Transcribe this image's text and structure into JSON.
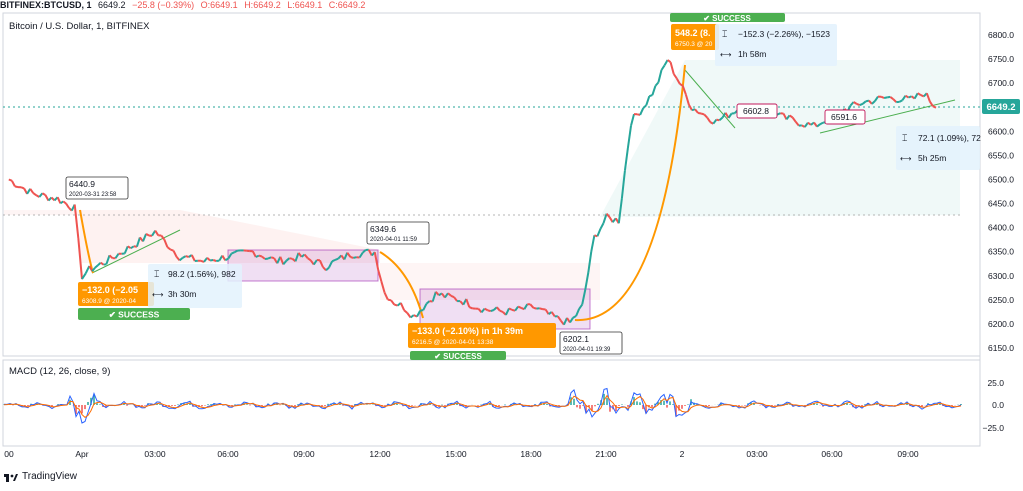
{
  "topbar": {
    "symbol": "BITFINEX:BTCUSD, 1",
    "last": "6649.2",
    "change": "−25.8 (−0.39%)",
    "o": "O:6649.1",
    "h": "H:6649.2",
    "l": "L:6649.1",
    "c": "C:6649.2"
  },
  "chart_title": "Bitcoin / U.S. Dollar, 1, BITFINEX",
  "price_badge": "6649.2",
  "macd_title": "MACD (12, 26, close, 9)",
  "brand": "TradingView",
  "colors": {
    "up": "#26a69a",
    "down": "#ef5350",
    "accent_orange": "#ff9800",
    "success_green": "#4caf50",
    "zone_purple": "#9c27b0"
  },
  "chart_data": {
    "type": "line",
    "x_ticks": [
      "00",
      "Apr",
      "03:00",
      "06:00",
      "09:00",
      "12:00",
      "15:00",
      "18:00",
      "21:00",
      "2",
      "03:00",
      "06:00",
      "09:00"
    ],
    "price_axis": [
      6800.0,
      6750.0,
      6700.0,
      6650.0,
      6600.0,
      6550.0,
      6500.0,
      6450.0,
      6400.0,
      6350.0,
      6300.0,
      6250.0,
      6200.0,
      6150.0
    ],
    "ylim": [
      6130,
      6830
    ],
    "macd_axis": [
      "25.0",
      "0.0",
      "−25.0"
    ],
    "price_series_hours": [
      -3.0,
      -2.0,
      -1.0,
      -0.3,
      0.0,
      0.3,
      1.0,
      2.0,
      3.0,
      4.0,
      5.0,
      6.0,
      7.0,
      8.0,
      9.0,
      10.0,
      11.0,
      12.0,
      12.4,
      12.8,
      13.2,
      13.6,
      14.5,
      15.5,
      16.5,
      17.5,
      18.5,
      19.5,
      20.0,
      20.5,
      21.0,
      21.5,
      22.0,
      22.5,
      23.0,
      23.5,
      24.0,
      25.0,
      26.0,
      27.0,
      28.0,
      29.0,
      30.0,
      31.0,
      32.0,
      33.0,
      34.0,
      34.5,
      35.0
    ],
    "price_series_values": [
      6500,
      6470,
      6460,
      6440,
      6300,
      6312,
      6330,
      6360,
      6392,
      6340,
      6330,
      6340,
      6350,
      6330,
      6340,
      6320,
      6345,
      6349,
      6265,
      6245,
      6235,
      6216,
      6262,
      6250,
      6230,
      6225,
      6235,
      6210,
      6202,
      6235,
      6380,
      6420,
      6415,
      6620,
      6650,
      6690,
      6750,
      6650,
      6620,
      6650,
      6640,
      6625,
      6610,
      6640,
      6660,
      6670,
      6665,
      6680,
      6649
    ],
    "annotations": {
      "boxes": [
        {
          "price": "6440.9",
          "time": "2020-03-31 23:58"
        },
        {
          "price": "6349.6",
          "time": "2020-04-01 11:59"
        },
        {
          "price": "6202.1",
          "time": "2020-04-01 19:39"
        },
        {
          "price": "6602.8"
        },
        {
          "price": "6591.6"
        }
      ],
      "orange_labels": [
        {
          "line1": "−132.0 (−2.05",
          "line2": "6308.9 @ 2020-04"
        },
        {
          "line1": "−133.0 (−2.10%) in 1h 39m",
          "line2": "6216.5 @ 2020-04-01 13:38"
        },
        {
          "line1": "548.2 (8.",
          "line2": "6750.3 @ 20"
        }
      ],
      "range_boxes": [
        {
          "line1": "98.2 (1.56%), 982",
          "line2": "3h 30m"
        },
        {
          "line1": "−152.3 (−2.26%), −1523",
          "line2": "1h 58m"
        },
        {
          "line1": "72.1 (1.09%), 72",
          "line2": "5h 25m"
        }
      ],
      "success_labels": [
        "✔ SUCCESS",
        "✔ SUCCESS",
        "✔ SUCCESS"
      ]
    }
  }
}
